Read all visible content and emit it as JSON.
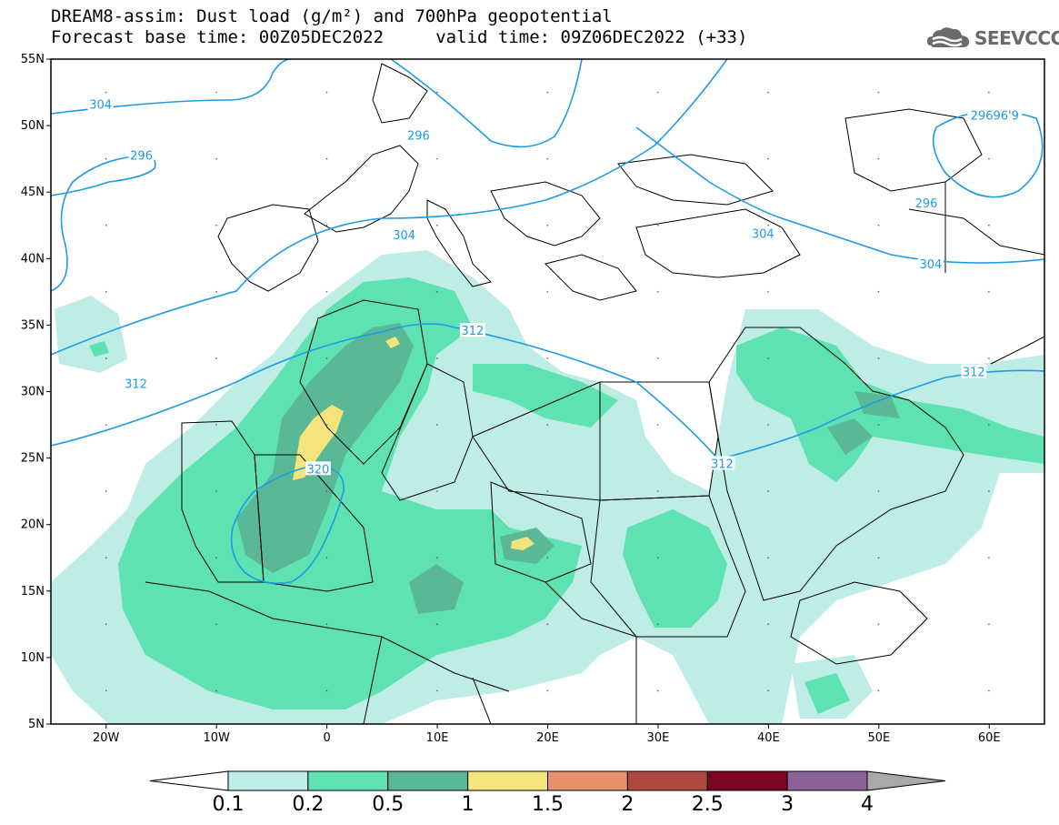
{
  "header": {
    "line1": "DREAM8-assim: Dust load (g/m²) and 700hPa geopotential",
    "line2": "Forecast base time: 00Z05DEC2022     valid time: 09Z06DEC2022 (+33)"
  },
  "logo": {
    "text": "SEEVCCC",
    "icon": "cloud-logo-icon"
  },
  "map": {
    "lon_range": [
      -25,
      65
    ],
    "lat_range": [
      5,
      55
    ],
    "lat_ticks": [
      {
        "value": 55,
        "label": "55N"
      },
      {
        "value": 50,
        "label": "50N"
      },
      {
        "value": 45,
        "label": "45N"
      },
      {
        "value": 40,
        "label": "40N"
      },
      {
        "value": 35,
        "label": "35N"
      },
      {
        "value": 30,
        "label": "30N"
      },
      {
        "value": 25,
        "label": "25N"
      },
      {
        "value": 20,
        "label": "20N"
      },
      {
        "value": 15,
        "label": "15N"
      },
      {
        "value": 10,
        "label": "10N"
      },
      {
        "value": 5,
        "label": "5N"
      }
    ],
    "lon_ticks": [
      {
        "value": -20,
        "label": "20W"
      },
      {
        "value": -10,
        "label": "10W"
      },
      {
        "value": 0,
        "label": "0"
      },
      {
        "value": 10,
        "label": "10E"
      },
      {
        "value": 20,
        "label": "20E"
      },
      {
        "value": 30,
        "label": "30E"
      },
      {
        "value": 40,
        "label": "40E"
      },
      {
        "value": 50,
        "label": "50E"
      },
      {
        "value": 60,
        "label": "60E"
      }
    ],
    "contour_labels": [
      {
        "text": "304",
        "lon": -20.5,
        "lat": 51.6
      },
      {
        "text": "296",
        "lon": -16.8,
        "lat": 47.8
      },
      {
        "text": "296",
        "lon": 8.3,
        "lat": 49.3
      },
      {
        "text": "304",
        "lon": 7.0,
        "lat": 41.8
      },
      {
        "text": "304",
        "lon": 39.5,
        "lat": 41.9
      },
      {
        "text": "304",
        "lon": 54.7,
        "lat": 39.6
      },
      {
        "text": "29696'9",
        "lon": 60.5,
        "lat": 50.8
      },
      {
        "text": "296",
        "lon": 54.3,
        "lat": 44.2
      },
      {
        "text": "312",
        "lon": 13.2,
        "lat": 34.6
      },
      {
        "text": "312",
        "lon": -17.3,
        "lat": 30.6
      },
      {
        "text": "312",
        "lon": 35.8,
        "lat": 24.6
      },
      {
        "text": "312",
        "lon": 58.6,
        "lat": 31.5
      },
      {
        "text": "320",
        "lon": -0.8,
        "lat": 24.2
      }
    ]
  },
  "colorbar": {
    "colors": [
      "#ffffff",
      "#bdede5",
      "#5fe2b2",
      "#5ab896",
      "#f3e57b",
      "#e8906a",
      "#ae4941",
      "#7c0424",
      "#8c6399",
      "#a9a9a9"
    ],
    "labels": [
      "0.1",
      "0.2",
      "0.5",
      "1",
      "1.5",
      "2",
      "2.5",
      "3",
      "4"
    ]
  },
  "legend_colors": {
    "contour": "#1e9be8",
    "border": "#000000"
  }
}
